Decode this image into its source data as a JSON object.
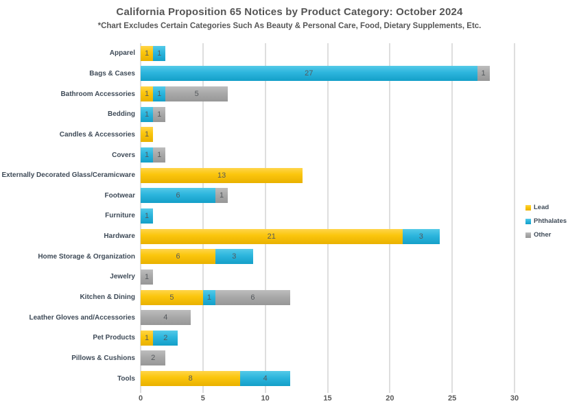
{
  "header": {
    "title": "California Proposition 65 Notices by Product Category: October 2024",
    "subtitle": "*Chart Excludes Certain Categories Such As Beauty & Personal Care, Food, Dietary Supplements, Etc."
  },
  "colors": {
    "lead": "#FBC60D",
    "phthalates": "#2CB5DD",
    "other": "#A9A9A9",
    "gridline": "#DEDEDE",
    "title_text": "#545454",
    "category_text": "#3E4A57",
    "value_text": "#54585C",
    "tick_text": "#595959"
  },
  "legend": {
    "position": "right",
    "items": [
      {
        "key": "lead",
        "label": "Lead"
      },
      {
        "key": "phthalates",
        "label": "Phthalates"
      },
      {
        "key": "other",
        "label": "Other"
      }
    ]
  },
  "chart_data": {
    "type": "bar",
    "orientation": "horizontal",
    "stacked": true,
    "title": "California Proposition 65 Notices by Product Category: October 2024",
    "subtitle": "*Chart Excludes Certain Categories Such As Beauty & Personal Care, Food, Dietary Supplements, Etc.",
    "categories": [
      "Apparel",
      "Bags & Cases",
      "Bathroom Accessories",
      "Bedding",
      "Candles & Accessories",
      "Covers",
      "Externally Decorated Glass/Ceramicware",
      "Footwear",
      "Furniture",
      "Hardware",
      "Home Storage & Organization",
      "Jewelry",
      "Kitchen & Dining",
      "Leather Gloves and/Accessories",
      "Pet Products",
      "Pillows & Cushions",
      "Tools"
    ],
    "series": [
      {
        "name": "Lead",
        "key": "lead",
        "color": "#FBC60D",
        "values": [
          1,
          0,
          1,
          0,
          1,
          0,
          13,
          0,
          0,
          21,
          6,
          0,
          5,
          0,
          1,
          0,
          8
        ]
      },
      {
        "name": "Phthalates",
        "key": "phthalates",
        "color": "#2CB5DD",
        "values": [
          1,
          27,
          1,
          1,
          0,
          1,
          0,
          6,
          1,
          3,
          3,
          0,
          1,
          0,
          2,
          0,
          4
        ]
      },
      {
        "name": "Other",
        "key": "other",
        "color": "#A9A9A9",
        "values": [
          0,
          1,
          5,
          1,
          0,
          1,
          0,
          1,
          0,
          0,
          0,
          1,
          6,
          4,
          0,
          2,
          0
        ]
      }
    ],
    "xlim": [
      0,
      30
    ],
    "xticks": [
      0,
      5,
      10,
      15,
      20,
      25,
      30
    ],
    "grid": "vertical",
    "value_labels": "inside-center",
    "legend_position": "right"
  }
}
